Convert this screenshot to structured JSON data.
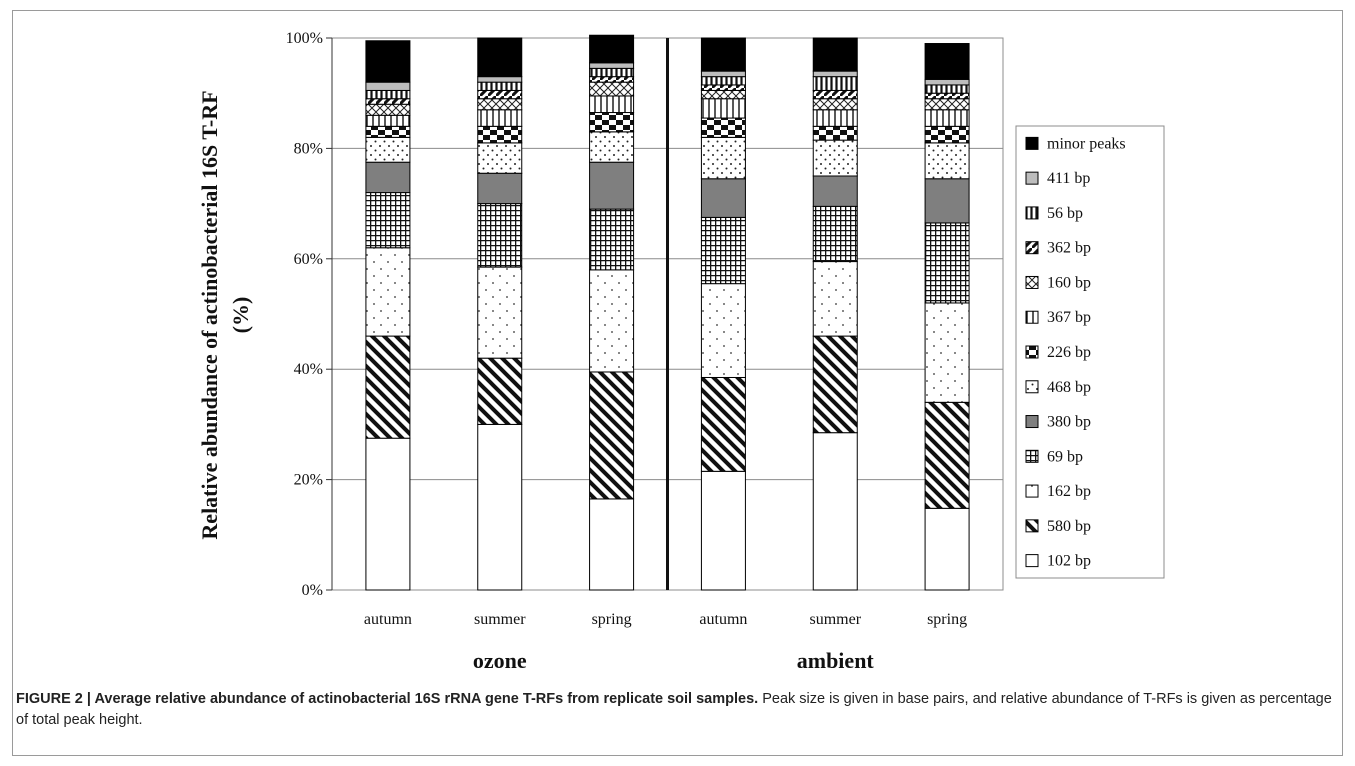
{
  "caption": {
    "bold": "FIGURE 2 | Average relative abundance of actinobacterial 16S rRNA gene T-RFs from replicate soil samples.",
    "rest": " Peak size is given in base pairs, and relative abundance of T-RFs is given as percentage of total peak height."
  },
  "chart_data": {
    "type": "bar",
    "stacked": true,
    "percent": true,
    "ylabel_line1": "Relative abundance of actinobacterial 16S T-RF",
    "ylabel_line2": "(%)",
    "ylim": [
      0,
      100
    ],
    "yticks": [
      "0%",
      "20%",
      "40%",
      "60%",
      "80%",
      "100%"
    ],
    "groups": [
      "ozone",
      "ambient"
    ],
    "categories": [
      "autumn",
      "summer",
      "spring",
      "autumn",
      "summer",
      "spring"
    ],
    "legend_position": "right",
    "series": [
      {
        "name": "102 bp",
        "pattern": "white",
        "values": [
          27.5,
          30,
          16.5,
          21.5,
          28.5,
          14.8
        ]
      },
      {
        "name": "580 bp",
        "pattern": "diag",
        "values": [
          18.5,
          12,
          23,
          17,
          17.5,
          19.2
        ]
      },
      {
        "name": "162 bp",
        "pattern": "dots",
        "values": [
          16,
          16.5,
          18.5,
          17,
          13.5,
          18
        ]
      },
      {
        "name": "69 bp",
        "pattern": "grid",
        "values": [
          10,
          11.5,
          11,
          12,
          10,
          14.5
        ]
      },
      {
        "name": "380 bp",
        "pattern": "gray",
        "values": [
          5.5,
          5.5,
          8.5,
          7,
          5.5,
          8
        ]
      },
      {
        "name": "468 bp",
        "pattern": "dots2",
        "values": [
          4.5,
          5.5,
          5.5,
          7.5,
          6.5,
          6.5
        ]
      },
      {
        "name": "226 bp",
        "pattern": "checker",
        "values": [
          2,
          3,
          3.5,
          3.5,
          2.5,
          3
        ]
      },
      {
        "name": "367 bp",
        "pattern": "vlines",
        "values": [
          2,
          3,
          3,
          3.5,
          3,
          3
        ]
      },
      {
        "name": "160 bp",
        "pattern": "diag2",
        "values": [
          2,
          2,
          2.5,
          1.5,
          2,
          2
        ]
      },
      {
        "name": "362 bp",
        "pattern": "diag3",
        "values": [
          1,
          1.5,
          1,
          1,
          1.5,
          1
        ]
      },
      {
        "name": "56 bp",
        "pattern": "vlines2",
        "values": [
          1.5,
          1.5,
          1.5,
          1.5,
          2.5,
          1.5
        ]
      },
      {
        "name": "411 bp",
        "pattern": "lightgray",
        "values": [
          1.5,
          1,
          1,
          1,
          1,
          1
        ]
      },
      {
        "name": "minor peaks",
        "pattern": "black",
        "values": [
          7.5,
          7,
          5,
          6,
          6,
          6.5
        ]
      }
    ]
  }
}
